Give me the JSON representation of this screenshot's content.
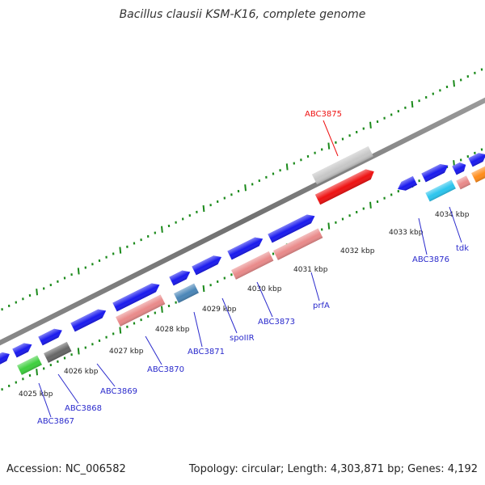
{
  "title": "Bacillus clausii KSM-K16, complete genome",
  "footer": {
    "accession": "Accession: NC_006582",
    "summary": "Topology: circular; Length: 4,303,871 bp; Genes: 4,192"
  },
  "colors": {
    "backbone": "#9a9a9a",
    "gene_default": "#1a1aee",
    "label": "#2a2acc",
    "highlight": "#ee1111",
    "tick": "#1b8a1b"
  },
  "coordinate_labels": [
    "4025 kbp",
    "4026 kbp",
    "4027 kbp",
    "4028 kbp",
    "4029 kbp",
    "4030 kbp",
    "4031 kbp",
    "4032 kbp",
    "4033 kbp",
    "4034 kbp"
  ],
  "genes": [
    {
      "name": "ABC3867",
      "color": "#3ecf3e",
      "strand": "inner"
    },
    {
      "name": "ABC3868",
      "color": "#666666",
      "strand": "inner"
    },
    {
      "name": "ABC3869",
      "color": "#1a1aee",
      "strand": "outer"
    },
    {
      "name": "ABC3870",
      "color": "#e98a8a",
      "strand": "inner"
    },
    {
      "name": "ABC3871",
      "color": "#4a86b8",
      "strand": "inner"
    },
    {
      "name": "spoIIR",
      "color": "#1a1aee",
      "strand": "outer"
    },
    {
      "name": "ABC3873",
      "color": "#e98a8a",
      "strand": "inner"
    },
    {
      "name": "prfA",
      "color": "#e98a8a",
      "strand": "inner"
    },
    {
      "name": "ABC3875",
      "color": "#ee1111",
      "strand": "inner"
    },
    {
      "name": "ABC3876",
      "color": "#1a1aee",
      "strand": "inner"
    },
    {
      "name": "tdk",
      "color": "#2bc5ee",
      "strand": "inner"
    }
  ]
}
